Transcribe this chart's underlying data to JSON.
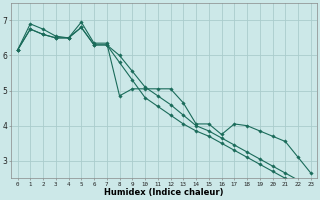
{
  "xlabel": "Humidex (Indice chaleur)",
  "ylabel": "",
  "background_color": "#cce8e8",
  "grid_color": "#aacccc",
  "line_color": "#1a6b5a",
  "xlim": [
    -0.5,
    23.5
  ],
  "ylim": [
    2.5,
    7.5
  ],
  "xticks": [
    0,
    1,
    2,
    3,
    4,
    5,
    6,
    7,
    8,
    9,
    10,
    11,
    12,
    13,
    14,
    15,
    16,
    17,
    18,
    19,
    20,
    21,
    22,
    23
  ],
  "yticks": [
    3,
    4,
    5,
    6,
    7
  ],
  "series1_x": [
    0,
    1,
    2,
    3,
    4,
    5,
    6,
    7,
    8,
    9,
    10,
    11,
    12,
    13,
    14,
    15,
    16,
    17,
    18,
    19,
    20,
    21,
    22,
    23
  ],
  "series1_y": [
    6.15,
    6.9,
    6.75,
    6.55,
    6.5,
    6.95,
    6.35,
    6.35,
    4.85,
    5.05,
    5.05,
    5.05,
    5.05,
    4.65,
    4.05,
    4.05,
    3.75,
    4.05,
    4.0,
    3.85,
    3.7,
    3.55,
    3.1,
    2.65
  ],
  "series2_x": [
    0,
    1,
    2,
    3,
    4,
    5,
    6,
    7,
    8,
    9,
    10,
    11,
    12,
    13,
    14,
    15,
    16,
    17,
    18,
    19,
    20,
    21,
    22,
    23
  ],
  "series2_y": [
    6.15,
    6.75,
    6.6,
    6.5,
    6.5,
    6.8,
    6.3,
    6.3,
    6.0,
    5.55,
    5.1,
    4.85,
    4.6,
    4.3,
    4.0,
    3.85,
    3.65,
    3.45,
    3.25,
    3.05,
    2.85,
    2.65,
    2.45,
    2.25
  ],
  "series3_x": [
    0,
    1,
    2,
    3,
    4,
    5,
    6,
    7,
    8,
    9,
    10,
    11,
    12,
    13,
    14,
    15,
    16,
    17,
    18,
    19,
    20,
    21,
    22,
    23
  ],
  "series3_y": [
    6.15,
    6.75,
    6.6,
    6.5,
    6.5,
    6.8,
    6.3,
    6.3,
    5.8,
    5.3,
    4.8,
    4.55,
    4.3,
    4.05,
    3.85,
    3.7,
    3.5,
    3.3,
    3.1,
    2.9,
    2.7,
    2.5,
    2.3,
    2.1
  ]
}
